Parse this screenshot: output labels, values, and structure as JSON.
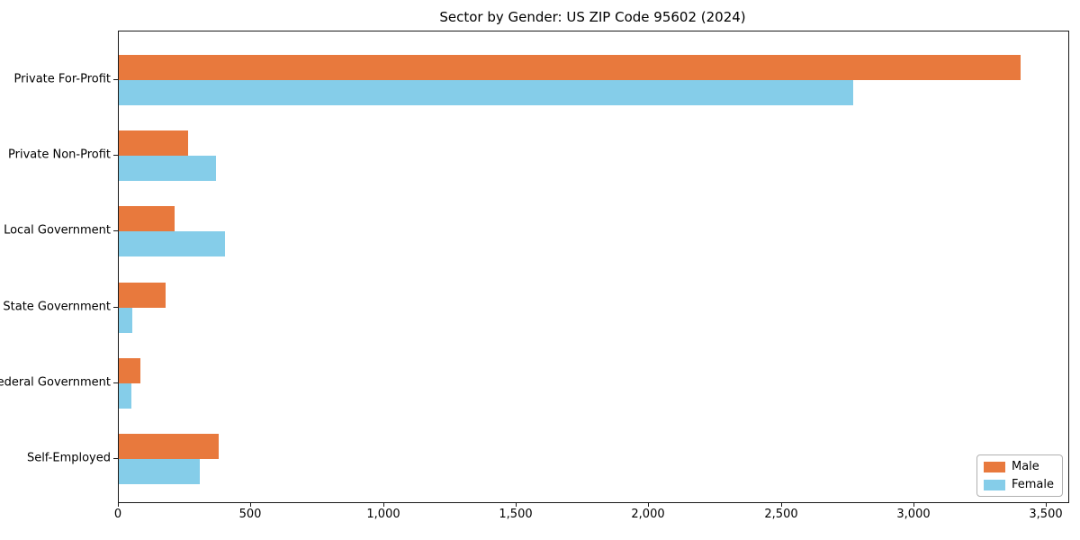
{
  "title": "Sector by Gender: US ZIP Code 95602 (2024)",
  "chart_data": {
    "type": "bar",
    "orientation": "horizontal",
    "title": "Sector by Gender: US ZIP Code 95602 (2024)",
    "categories": [
      "Private For-Profit",
      "Private Non-Profit",
      "Local Government",
      "State Government",
      "Federal Government",
      "Self-Employed"
    ],
    "series": [
      {
        "name": "Male",
        "color": "#E8793D",
        "values": [
          3400,
          260,
          210,
          175,
          80,
          375
        ]
      },
      {
        "name": "Female",
        "color": "#85CDE9",
        "values": [
          2770,
          365,
          400,
          50,
          48,
          305
        ]
      }
    ],
    "xlim": [
      0,
      3580
    ],
    "x_ticks": [
      0,
      500,
      1000,
      1500,
      2000,
      2500,
      3000,
      3500
    ],
    "x_tick_labels": [
      "0",
      "500",
      "1,000",
      "1,500",
      "2,000",
      "2,500",
      "3,000",
      "3,500"
    ],
    "xlabel": "",
    "ylabel": "",
    "grid": false,
    "legend_position": "lower right",
    "frame": true
  },
  "legend": {
    "items": [
      {
        "label": "Male",
        "color": "#E8793D"
      },
      {
        "label": "Female",
        "color": "#85CDE9"
      }
    ]
  }
}
